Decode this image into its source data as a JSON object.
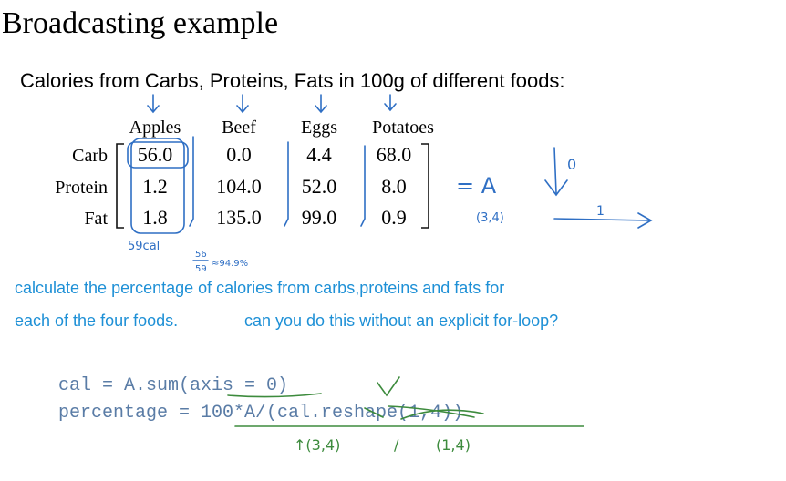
{
  "title": "Broadcasting example",
  "subtitle": "Calories from Carbs, Proteins, Fats in 100g of different foods:",
  "table": {
    "columns": [
      "Apples",
      "Beef",
      "Eggs",
      "Potatoes"
    ],
    "rows": [
      {
        "label": "Carb",
        "cells": [
          "56.0",
          "0.0",
          "4.4",
          "68.0"
        ]
      },
      {
        "label": "Protein",
        "cells": [
          "1.2",
          "104.0",
          "52.0",
          "8.0"
        ]
      },
      {
        "label": "Fat",
        "cells": [
          "1.8",
          "135.0",
          "99.0",
          "0.9"
        ]
      }
    ]
  },
  "annotations": {
    "apples_total": "59cal",
    "fraction_top": "56",
    "fraction_bottom": "59",
    "percent": "≈94.9%",
    "matrix_name": "= A",
    "matrix_shape": "(3,4)",
    "axis0": "0",
    "axis1": "1",
    "cal_shape_left": "↑(3,4)",
    "slash": "/",
    "cal_shape_right": "(1,4)"
  },
  "question": [
    "calculate the percentage of calories from carbs,proteins and fats for",
    "each of the four foods.",
    "can you do this without an explicit for-loop?"
  ],
  "code": [
    "cal = A.sum(axis = 0)",
    "percentage = 100*A/(cal.reshape(1,4))"
  ]
}
